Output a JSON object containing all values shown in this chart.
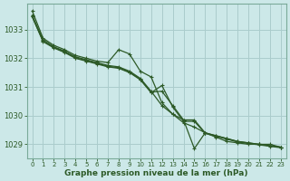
{
  "xlabel": "Graphe pression niveau de la mer (hPa)",
  "background_color": "#cce8e8",
  "grid_color": "#aacccc",
  "line_color": "#2d5a27",
  "ylim": [
    1028.5,
    1033.9
  ],
  "xlim": [
    -0.5,
    23.5
  ],
  "yticks": [
    1029,
    1030,
    1031,
    1032,
    1033
  ],
  "xticks": [
    0,
    1,
    2,
    3,
    4,
    5,
    6,
    7,
    8,
    9,
    10,
    11,
    12,
    13,
    14,
    15,
    16,
    17,
    18,
    19,
    20,
    21,
    22,
    23
  ],
  "series": [
    [
      1033.65,
      1032.7,
      1032.45,
      1032.3,
      1032.1,
      1032.0,
      1031.9,
      1031.85,
      1032.3,
      1032.15,
      1031.55,
      1031.35,
      1030.45,
      1030.05,
      1029.85,
      1028.85,
      1029.4,
      1029.25,
      1029.1,
      1029.05,
      1029.0,
      1029.0,
      1029.0,
      1028.9
    ],
    [
      1033.5,
      1032.65,
      1032.4,
      1032.25,
      1032.05,
      1031.95,
      1031.85,
      1031.75,
      1031.7,
      1031.55,
      1031.3,
      1030.85,
      1030.35,
      1030.05,
      1029.75,
      1029.6,
      1029.4,
      1029.3,
      1029.2,
      1029.1,
      1029.05,
      1029.0,
      1028.95,
      1028.9
    ],
    [
      1033.45,
      1032.6,
      1032.38,
      1032.22,
      1032.02,
      1031.92,
      1031.82,
      1031.72,
      1031.67,
      1031.52,
      1031.27,
      1030.82,
      1030.85,
      1030.35,
      1029.85,
      1029.85,
      1029.4,
      1029.3,
      1029.2,
      1029.1,
      1029.05,
      1029.0,
      1028.95,
      1028.9
    ],
    [
      1033.45,
      1032.58,
      1032.36,
      1032.2,
      1032.0,
      1031.9,
      1031.8,
      1031.7,
      1031.65,
      1031.5,
      1031.25,
      1030.8,
      1031.05,
      1030.3,
      1029.8,
      1029.8,
      1029.38,
      1029.28,
      1029.18,
      1029.08,
      1029.03,
      1028.98,
      1028.93,
      1028.88
    ]
  ]
}
